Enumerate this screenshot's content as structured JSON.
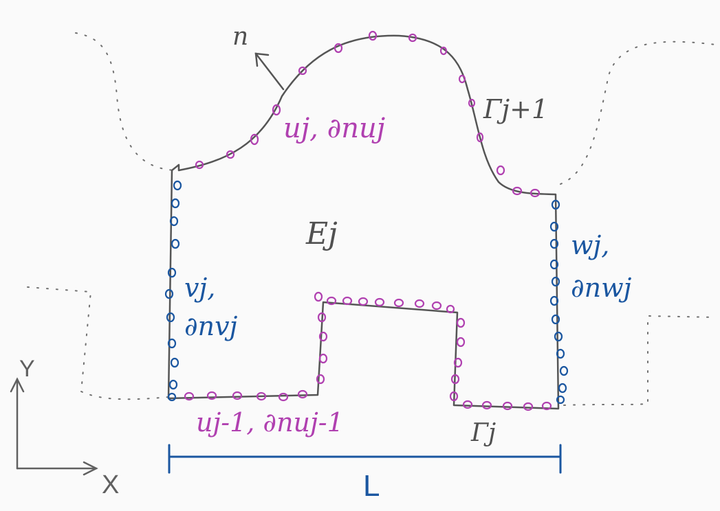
{
  "labels": {
    "normal": "n",
    "top_bc": "uj, ∂nuj",
    "top_boundary": "Γj+1",
    "element": "Ej",
    "left_bc_1": "vj,",
    "left_bc_2": "∂nvj",
    "right_bc_1": "wj,",
    "right_bc_2": "∂nwj",
    "bottom_bc": "uj-1, ∂nuj-1",
    "bottom_boundary": "Γj",
    "length": "L",
    "axis_x": "X",
    "axis_y": "Y"
  },
  "colors": {
    "boundary": "#555555",
    "magenta": "#b040b0",
    "blue": "#1a56a0",
    "axis": "#606060",
    "dotted": "#707070"
  }
}
